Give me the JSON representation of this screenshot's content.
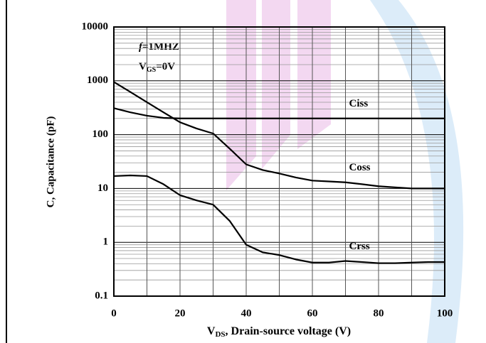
{
  "chart_data": {
    "type": "line",
    "ylabel": "C, Capacitance (pF)",
    "xlabel": {
      "main": "V",
      "sub": "DS",
      "rest": ", Drain-source voltage (V)"
    },
    "annotations": [
      {
        "italic": "f",
        "rest": "=1MHZ"
      },
      {
        "main": "V",
        "sub": "GS",
        "rest": "=0V"
      }
    ],
    "x": [
      0,
      5,
      10,
      15,
      20,
      25,
      30,
      35,
      40,
      45,
      50,
      55,
      60,
      65,
      70,
      75,
      80,
      85,
      90,
      95,
      100
    ],
    "series": [
      {
        "name": "Ciss",
        "color": "#000000",
        "values": [
          310,
          260,
          225,
          205,
          200,
          200,
          200,
          200,
          200,
          200,
          200,
          200,
          200,
          200,
          200,
          200,
          200,
          200,
          200,
          200,
          200
        ]
      },
      {
        "name": "Coss",
        "color": "#000000",
        "values": [
          950,
          620,
          400,
          260,
          170,
          130,
          105,
          55,
          28,
          22,
          19,
          16,
          14,
          13.5,
          13,
          12,
          11,
          10.5,
          10,
          10,
          10
        ]
      },
      {
        "name": "Crss",
        "color": "#000000",
        "values": [
          17,
          17.5,
          17,
          12,
          7.5,
          6,
          5,
          2.5,
          0.9,
          0.65,
          0.58,
          0.48,
          0.42,
          0.42,
          0.45,
          0.43,
          0.41,
          0.41,
          0.42,
          0.43,
          0.43
        ]
      }
    ],
    "xlim": [
      0,
      100
    ],
    "xticks": [
      0,
      20,
      40,
      60,
      80,
      100
    ],
    "ylim": [
      0.1,
      10000
    ],
    "yticks": [
      0.1,
      1,
      10,
      100,
      1000,
      10000
    ],
    "log_y": true,
    "grid": true,
    "minor_grid": true
  }
}
